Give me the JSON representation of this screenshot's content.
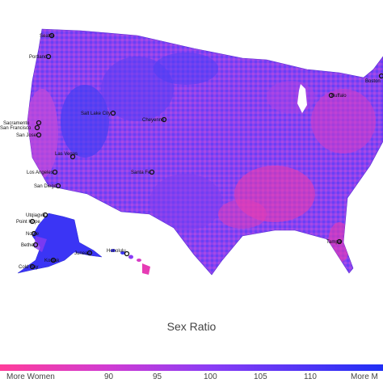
{
  "map": {
    "title": "Sex Ratio",
    "colors": {
      "more_women": "#ff3d9a",
      "balanced": "#8a3cf5",
      "more_men": "#1f2ff5",
      "land_base": "#8a43f0"
    },
    "colorbar": {
      "ticks": [
        "More Women",
        "90",
        "95",
        "100",
        "105",
        "110",
        "More M"
      ]
    },
    "cities": [
      {
        "name": "Seattle"
      },
      {
        "name": "Portland"
      },
      {
        "name": "Sacramento"
      },
      {
        "name": "San Francisco"
      },
      {
        "name": "San Jose"
      },
      {
        "name": "Las Vegas"
      },
      {
        "name": "Los Angeles"
      },
      {
        "name": "San Diego"
      },
      {
        "name": "Salt Lake City"
      },
      {
        "name": "Cheyenne"
      },
      {
        "name": "Santa Fe"
      },
      {
        "name": "Buffalo"
      },
      {
        "name": "Boston"
      },
      {
        "name": "Tampa"
      },
      {
        "name": "Utqiagvik"
      },
      {
        "name": "Point Hope"
      },
      {
        "name": "Nome"
      },
      {
        "name": "Bethel"
      },
      {
        "name": "Cold Bay"
      },
      {
        "name": "Juneau"
      },
      {
        "name": "Kodiak"
      },
      {
        "name": "Honolulu"
      }
    ]
  }
}
